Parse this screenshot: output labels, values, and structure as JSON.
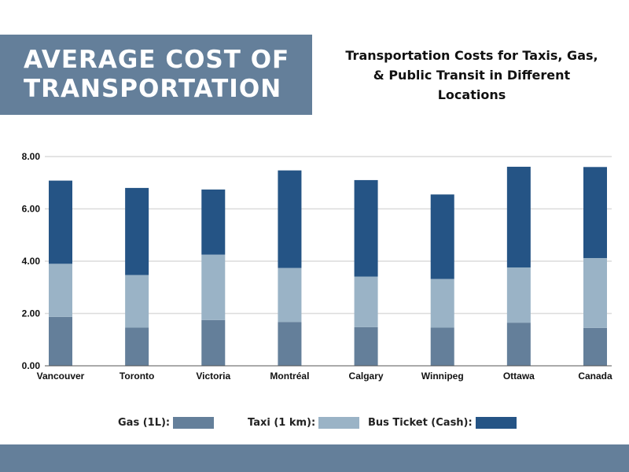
{
  "banner": {
    "title": "AVERAGE COST OF TRANSPORTATION"
  },
  "subtitle": "Transportation Costs for Taxis, Gas, & Public Transit in Different Locations",
  "chart_data": {
    "type": "bar",
    "stacked": true,
    "categories": [
      "Vancouver",
      "Toronto",
      "Victoria",
      "Montréal",
      "Calgary",
      "Winnipeg",
      "Ottawa",
      "Canada"
    ],
    "series": [
      {
        "name": "Gas (1L):",
        "color": "#647f9a",
        "values": [
          1.87,
          1.46,
          1.75,
          1.67,
          1.48,
          1.46,
          1.65,
          1.45
        ]
      },
      {
        "name": "Taxi (1 km):",
        "color": "#9ab3c6",
        "values": [
          2.03,
          2.01,
          2.5,
          2.07,
          1.93,
          1.86,
          2.11,
          2.67
        ]
      },
      {
        "name": "Bus Ticket (Cash):",
        "color": "#255485",
        "values": [
          3.18,
          3.33,
          2.49,
          3.73,
          3.69,
          3.23,
          3.85,
          3.48
        ]
      }
    ],
    "yticks": [
      "0.00",
      "2.00",
      "4.00",
      "6.00",
      "8.00"
    ],
    "ylim": [
      0,
      8
    ],
    "grid": true,
    "legend": "bottom"
  }
}
